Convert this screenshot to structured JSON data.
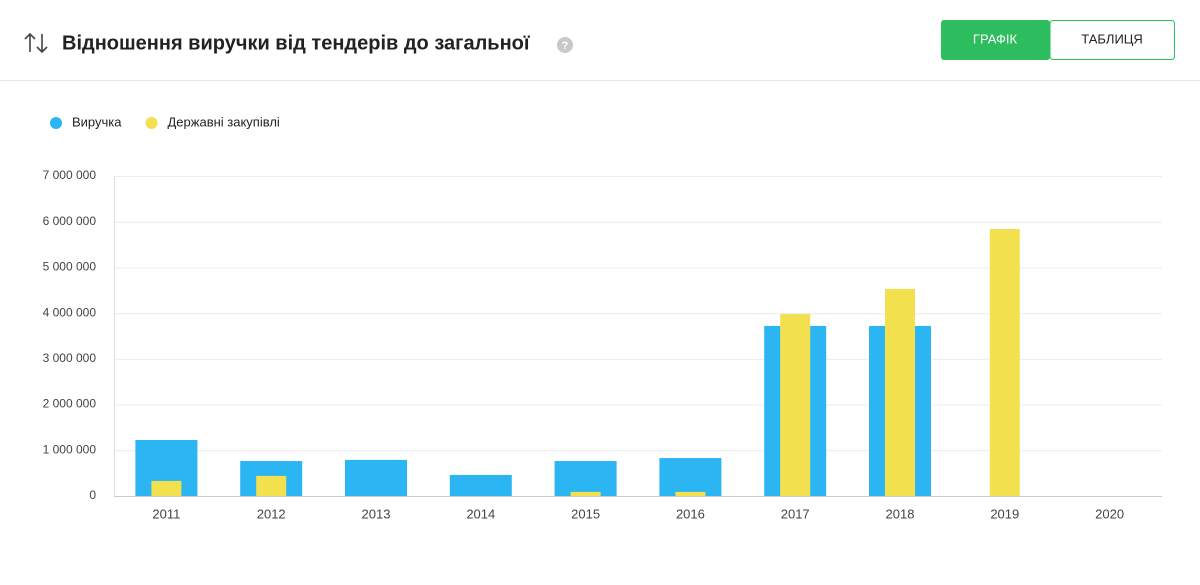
{
  "header": {
    "title": "Відношення виручки від тендерів до загальної",
    "buttons": [
      "ГРАФІК",
      "ТАБЛИЦЯ"
    ]
  },
  "chart_data": {
    "type": "bar",
    "categories": [
      "2011",
      "2012",
      "2013",
      "2014",
      "2015",
      "2016",
      "2017",
      "2018",
      "2019",
      "2020"
    ],
    "series": [
      {
        "name": "Виручка",
        "color": "#2cb5f3",
        "values": [
          1225000,
          765000,
          790000,
          460000,
          765000,
          830000,
          3720000,
          3720000,
          null,
          null
        ]
      },
      {
        "name": "Державні закупівлі",
        "color": "#f2e04f",
        "values": [
          330000,
          440000,
          null,
          null,
          90000,
          90000,
          3980000,
          4530000,
          5840000,
          null
        ]
      }
    ],
    "ylim": [
      0,
      7000000
    ],
    "yticks": [
      0,
      {
        "value": 1000000,
        "label": "1 000 000"
      },
      {
        "value": 2000000,
        "label": "2 000 000"
      },
      {
        "value": 3000000,
        "label": "3 000 000"
      },
      {
        "value": 4000000,
        "label": "4 000 000"
      },
      {
        "value": 5000000,
        "label": "5 000 000"
      },
      {
        "value": 6000000,
        "label": "6 000 000"
      },
      {
        "value": 7000000,
        "label": "7 000 000"
      }
    ],
    "grid": true
  }
}
